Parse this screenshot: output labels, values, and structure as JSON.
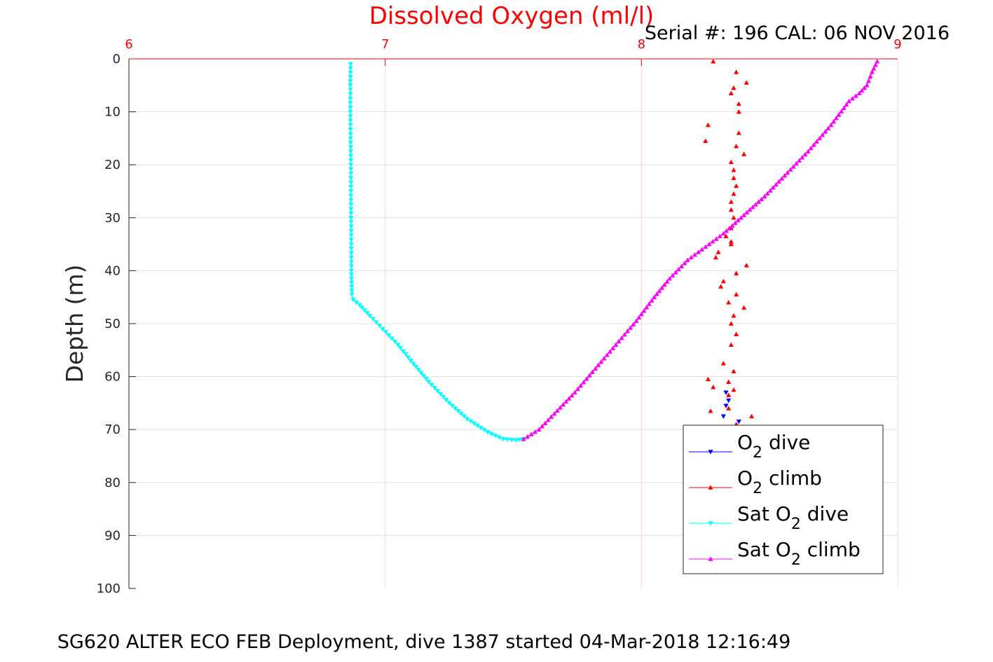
{
  "chart_data": {
    "type": "scatter",
    "title": "Dissolved Oxygen (ml/l)",
    "subtitle": "Serial #: 196  CAL: 06 NOV 2016",
    "footer": "SG620 ALTER ECO FEB Deployment, dive 1387 started 04-Mar-2018 12:16:49",
    "xlabel": "",
    "ylabel": "Depth (m)",
    "xlim": [
      6,
      9
    ],
    "ylim": [
      0,
      100
    ],
    "y_reversed": true,
    "x_axis_position": "top",
    "x_ticks": [
      "6",
      "7",
      "8",
      "9"
    ],
    "y_ticks": [
      "0",
      "10",
      "20",
      "30",
      "40",
      "50",
      "60",
      "70",
      "80",
      "90",
      "100"
    ],
    "grid": true,
    "legend_position": "bottom-right",
    "colors": {
      "title": "#ff0000",
      "x_axis": "#ff0000",
      "grid": "#e0e0e0"
    },
    "series": [
      {
        "name": "O2 dive",
        "label_parts": [
          "O",
          "2",
          " dive"
        ],
        "color": "#0000ff",
        "marker": "triangle-down",
        "line": false,
        "x": [
          8.33,
          8.34,
          8.33,
          8.32,
          8.38,
          8.33
        ],
        "y": [
          63.0,
          64.5,
          65.5,
          67.5,
          68.5,
          69.5
        ]
      },
      {
        "name": "O2 climb",
        "label_parts": [
          "O",
          "2",
          " climb"
        ],
        "color": "#ff0000",
        "marker": "triangle-up",
        "line": false,
        "x": [
          8.28,
          8.37,
          8.41,
          8.36,
          8.35,
          8.38,
          8.38,
          8.26,
          8.38,
          8.25,
          8.37,
          8.4,
          8.35,
          8.36,
          8.36,
          8.37,
          8.36,
          8.35,
          8.35,
          8.36,
          8.35,
          8.33,
          8.35,
          8.3,
          8.35,
          8.29,
          8.41,
          8.37,
          8.32,
          8.31,
          8.37,
          8.4,
          8.34,
          8.36,
          8.35,
          8.37,
          8.35,
          8.32,
          8.36,
          8.34,
          8.36,
          8.26,
          8.28,
          8.34,
          8.27,
          8.34,
          8.43,
          8.37
        ],
        "y": [
          0.5,
          2.5,
          4.5,
          5.5,
          6.5,
          8.5,
          10.0,
          12.5,
          14.0,
          15.5,
          16.5,
          18.0,
          19.5,
          21.0,
          22.5,
          24.0,
          25.5,
          27.0,
          28.5,
          30.0,
          32.0,
          33.5,
          35.0,
          36.5,
          34.5,
          37.5,
          39.0,
          40.5,
          42.0,
          43.0,
          44.5,
          47.0,
          46.0,
          48.5,
          50.0,
          52.0,
          54.0,
          57.5,
          59.0,
          61.0,
          62.5,
          60.5,
          62.0,
          63.5,
          66.5,
          66.0,
          67.5,
          69.0
        ]
      },
      {
        "name": "Sat O2 dive",
        "label_parts": [
          "Sat O",
          "2",
          " dive"
        ],
        "color": "#00ffff",
        "marker": "triangle-down",
        "line": true,
        "x": [
          6.865,
          6.864,
          6.864,
          6.865,
          6.866,
          6.866,
          6.867,
          6.868,
          6.868,
          6.869,
          6.87,
          6.875,
          6.9,
          6.94,
          6.99,
          7.05,
          7.1,
          7.17,
          7.25,
          7.32,
          7.4,
          7.46,
          7.51,
          7.54
        ],
        "y": [
          1.0,
          5.0,
          10.0,
          15.0,
          20.0,
          25.0,
          30.0,
          35.0,
          40.0,
          43.0,
          44.5,
          45.5,
          46.5,
          48.5,
          51.0,
          54.0,
          57.0,
          61.0,
          65.0,
          68.0,
          70.5,
          71.8,
          72.0,
          71.8
        ]
      },
      {
        "name": "Sat O2 climb",
        "label_parts": [
          "Sat O",
          "2",
          " climb"
        ],
        "color": "#ff00ff",
        "marker": "triangle-up",
        "line": true,
        "x": [
          7.54,
          7.6,
          7.66,
          7.74,
          7.82,
          7.9,
          7.98,
          8.05,
          8.11,
          8.18,
          8.25,
          8.32,
          8.4,
          8.48,
          8.57,
          8.65,
          8.74,
          8.81,
          8.85,
          8.88,
          8.9,
          8.92
        ],
        "y": [
          71.8,
          70.0,
          67.0,
          63.0,
          58.5,
          54.0,
          49.5,
          45.0,
          41.5,
          38.0,
          35.5,
          33.0,
          29.5,
          26.0,
          21.5,
          17.5,
          12.5,
          8.0,
          6.5,
          5.0,
          2.5,
          0.5
        ]
      }
    ]
  }
}
